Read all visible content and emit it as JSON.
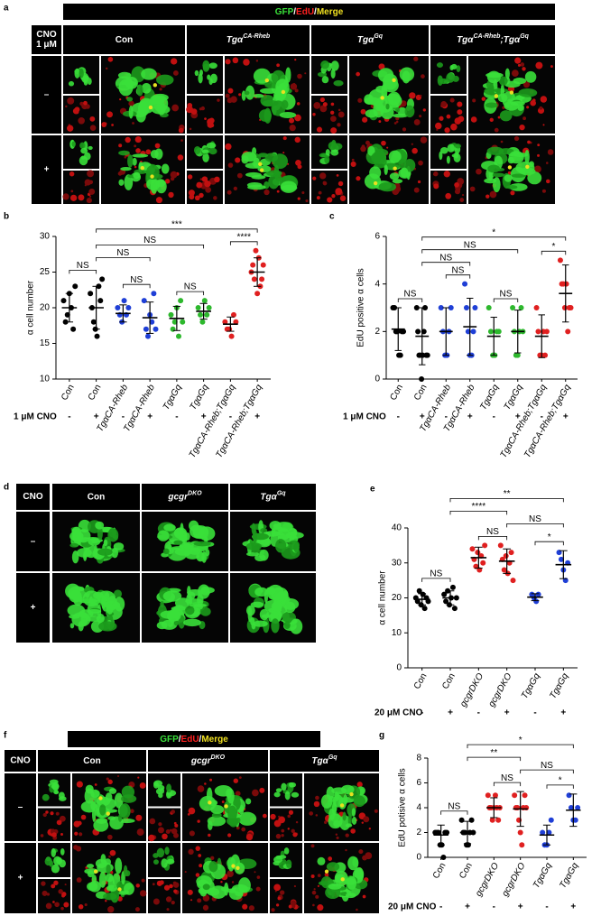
{
  "figure": {
    "a": {
      "label": "a",
      "header": [
        "GFP",
        "/",
        "EdU",
        "/",
        "Merge"
      ],
      "corner": [
        "CNO",
        "1 μM"
      ],
      "columns": [
        [
          {
            "text": "Con"
          }
        ],
        [
          {
            "text": "Tgα"
          },
          {
            "sup": "CA-Rheb"
          }
        ],
        [
          {
            "text": "Tgα"
          },
          {
            "sup": "Gq"
          }
        ],
        [
          {
            "text": "Tgα"
          },
          {
            "sup": "CA-Rheb"
          },
          {
            "text": ";Tgα"
          },
          {
            "sup": "Gq"
          }
        ]
      ],
      "rows": [
        "–",
        "+"
      ]
    },
    "d": {
      "label": "d",
      "corner": [
        "CNO"
      ],
      "columns": [
        [
          {
            "text": "Con"
          }
        ],
        [
          {
            "text": "gcgr"
          },
          {
            "sup": "DKO"
          }
        ],
        [
          {
            "text": "Tgα"
          },
          {
            "sup": "Gq"
          }
        ]
      ],
      "rows": [
        "–",
        "+"
      ]
    },
    "f": {
      "label": "f",
      "header": [
        "GFP",
        "/",
        "EdU",
        "/",
        "Merge"
      ],
      "corner": [
        "CNO"
      ],
      "columns": [
        [
          {
            "text": "Con"
          }
        ],
        [
          {
            "text": "gcgr"
          },
          {
            "sup": "DKO"
          }
        ],
        [
          {
            "text": "Tgα"
          },
          {
            "sup": "Gq"
          }
        ]
      ],
      "rows": [
        "–",
        "+"
      ]
    }
  },
  "chart_data": [
    {
      "type": "dotplot",
      "label": "b",
      "ylabel": "α cell number",
      "ylim": [
        10,
        30
      ],
      "yticks": [
        10,
        15,
        20,
        25,
        30
      ],
      "categories": [
        "Con",
        "Con",
        "TgαCA-Rheb",
        "TgαCA-Rheb",
        "TgαGq",
        "TgαGq",
        "TgαCA-Rheb;TgαGq",
        "TgαCA-Rheb;TgαGq"
      ],
      "colors": [
        "#000000",
        "#000000",
        "#1f3fd6",
        "#1f3fd6",
        "#2db82d",
        "#2db82d",
        "#e02020",
        "#e02020"
      ],
      "points": [
        [
          21,
          18,
          19,
          22,
          20,
          17,
          23
        ],
        [
          22,
          20,
          18,
          17,
          16,
          23,
          21,
          24
        ],
        [
          20,
          19,
          18,
          21,
          19,
          20
        ],
        [
          21,
          17,
          16,
          19,
          18,
          22,
          17
        ],
        [
          19,
          17,
          18,
          20,
          16,
          21,
          18
        ],
        [
          20,
          19,
          18,
          21,
          19,
          20
        ],
        [
          18,
          17,
          17,
          16,
          19,
          18
        ],
        [
          25,
          26,
          24,
          28,
          22,
          27,
          23,
          24,
          26
        ]
      ],
      "means": [
        20,
        20,
        19.2,
        18.6,
        18.5,
        19.5,
        17.7,
        25
      ],
      "sds": [
        2,
        3,
        1.2,
        2.2,
        1.7,
        1.1,
        1,
        2
      ],
      "comparisons": [
        {
          "from": 0,
          "to": 1,
          "label": "NS"
        },
        {
          "from": 2,
          "to": 3,
          "label": "NS"
        },
        {
          "from": 4,
          "to": 5,
          "label": "NS"
        },
        {
          "from": 6,
          "to": 7,
          "label": "****"
        },
        {
          "from": 1,
          "to": 3,
          "label": "NS"
        },
        {
          "from": 1,
          "to": 5,
          "label": "NS"
        },
        {
          "from": 1,
          "to": 7,
          "label": "***"
        }
      ],
      "treatment": {
        "label": "1 μM CNO",
        "signs": [
          "-",
          "+",
          "-",
          "+",
          "-",
          "+",
          "-",
          "+"
        ]
      }
    },
    {
      "type": "dotplot",
      "label": "c",
      "ylabel": "EdU positive α cells",
      "ylim": [
        0,
        6
      ],
      "yticks": [
        0,
        2,
        4,
        6
      ],
      "categories": [
        "Con",
        "Con",
        "TgαCA-Rheb",
        "TgαCA-Rheb",
        "TgαGq",
        "TgαGq",
        "TgαCA-Rheb;TgαGq",
        "TgαCA-Rheb;TgαGq"
      ],
      "colors": [
        "#000000",
        "#000000",
        "#1f3fd6",
        "#1f3fd6",
        "#2db82d",
        "#2db82d",
        "#e02020",
        "#e02020"
      ],
      "points": [
        [
          3,
          3,
          2,
          2,
          1,
          1,
          2,
          2
        ],
        [
          3,
          2,
          1,
          1,
          0,
          1,
          2,
          3,
          1,
          1
        ],
        [
          3,
          2,
          1,
          1,
          2,
          3
        ],
        [
          4,
          3,
          2,
          1,
          1,
          2,
          3
        ],
        [
          3,
          2,
          1,
          1,
          2,
          2
        ],
        [
          3,
          2,
          1,
          1,
          2,
          3,
          2
        ],
        [
          3,
          2,
          1,
          1,
          2,
          1,
          2
        ],
        [
          5,
          4,
          4,
          3,
          4,
          2,
          3,
          3
        ]
      ],
      "means": [
        2.1,
        1.8,
        2,
        2.2,
        1.8,
        2,
        1.8,
        3.6
      ],
      "sds": [
        0.9,
        1.2,
        1,
        1.2,
        0.8,
        0.9,
        0.9,
        1.2
      ],
      "comparisons": [
        {
          "from": 0,
          "to": 1,
          "label": "NS"
        },
        {
          "from": 2,
          "to": 3,
          "label": "NS"
        },
        {
          "from": 4,
          "to": 5,
          "label": "NS"
        },
        {
          "from": 6,
          "to": 7,
          "label": "*"
        },
        {
          "from": 1,
          "to": 3,
          "label": "NS"
        },
        {
          "from": 1,
          "to": 5,
          "label": "NS"
        },
        {
          "from": 1,
          "to": 7,
          "label": "*"
        }
      ],
      "treatment": {
        "label": "1 μM CNO",
        "signs": [
          "-",
          "+",
          "-",
          "+",
          "-",
          "+",
          "-",
          "+"
        ]
      }
    },
    {
      "type": "dotplot",
      "label": "e",
      "ylabel": "α cell number",
      "ylim": [
        0,
        40
      ],
      "yticks": [
        0,
        10,
        20,
        30,
        40
      ],
      "categories": [
        "Con",
        "Con",
        "gcgrDKO",
        "gcgrDKO",
        "TgαGq",
        "TgαGq"
      ],
      "colors": [
        "#000000",
        "#000000",
        "#e02020",
        "#e02020",
        "#1f3fd6",
        "#1f3fd6"
      ],
      "points": [
        [
          20,
          19,
          22,
          18,
          21,
          17,
          20,
          19
        ],
        [
          21,
          19,
          22,
          18,
          20,
          23,
          17,
          20
        ],
        [
          34,
          31,
          29,
          33,
          28,
          32,
          30,
          35
        ],
        [
          35,
          31,
          28,
          32,
          27,
          30,
          33,
          25
        ],
        [
          21,
          20,
          19,
          21
        ],
        [
          33,
          31,
          28,
          25,
          30
        ]
      ],
      "means": [
        19.6,
        20,
        31.5,
        30.5,
        20.2,
        29.5
      ],
      "sds": [
        1.6,
        2,
        3,
        3.5,
        1,
        4
      ],
      "comparisons": [
        {
          "from": 0,
          "to": 1,
          "label": "NS"
        },
        {
          "from": 2,
          "to": 3,
          "label": "NS"
        },
        {
          "from": 3,
          "to": 5,
          "label": "NS"
        },
        {
          "from": 4,
          "to": 5,
          "label": "*"
        },
        {
          "from": 1,
          "to": 3,
          "label": "****"
        },
        {
          "from": 1,
          "to": 5,
          "label": "**"
        }
      ],
      "treatment": {
        "label": "20 μM CNO",
        "signs": [
          "-",
          "+",
          "-",
          "+",
          "-",
          "+"
        ]
      }
    },
    {
      "type": "dotplot",
      "label": "g",
      "ylabel": "EdU potisive α cells",
      "ylim": [
        0,
        8
      ],
      "yticks": [
        0,
        2,
        4,
        6,
        8
      ],
      "categories": [
        "Con",
        "Con",
        "gcgrDKO",
        "gcgrDKO",
        "TgαGq",
        "TgαGq"
      ],
      "colors": [
        "#000000",
        "#000000",
        "#e02020",
        "#e02020",
        "#1f3fd6",
        "#1f3fd6"
      ],
      "points": [
        [
          2,
          2,
          2,
          1,
          1,
          0,
          2,
          2
        ],
        [
          3,
          2,
          2,
          1,
          1,
          2,
          3,
          2
        ],
        [
          5,
          4,
          4,
          3,
          4,
          5,
          4,
          3,
          4
        ],
        [
          5,
          4,
          4,
          3,
          2,
          1,
          4,
          5,
          4
        ],
        [
          2,
          1,
          1,
          2,
          3
        ],
        [
          5,
          4,
          3,
          3,
          4
        ]
      ],
      "means": [
        1.8,
        2,
        4,
        3.9,
        1.8,
        3.8
      ],
      "sds": [
        0.8,
        0.9,
        0.8,
        1.4,
        0.8,
        1.3
      ],
      "comparisons": [
        {
          "from": 0,
          "to": 1,
          "label": "NS"
        },
        {
          "from": 2,
          "to": 3,
          "label": "NS"
        },
        {
          "from": 3,
          "to": 5,
          "label": "NS"
        },
        {
          "from": 4,
          "to": 5,
          "label": "*"
        },
        {
          "from": 1,
          "to": 3,
          "label": "**"
        },
        {
          "from": 1,
          "to": 5,
          "label": "*"
        }
      ],
      "treatment": {
        "label": "20 μM CNO",
        "signs": [
          "-",
          "+",
          "-",
          "+",
          "-",
          "+"
        ]
      }
    }
  ]
}
